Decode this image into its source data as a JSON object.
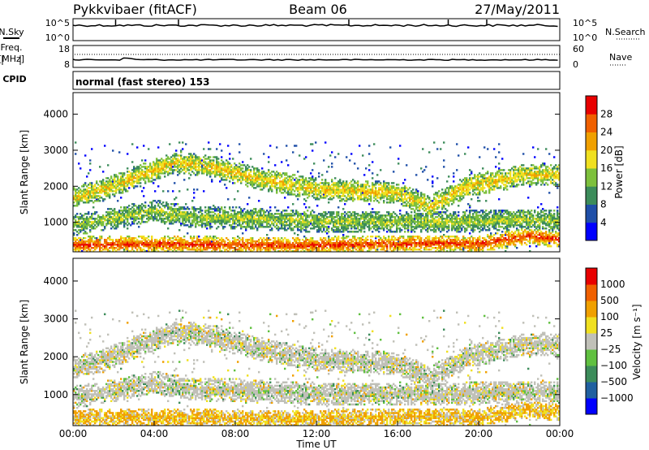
{
  "header": {
    "title": "Pykkvibaer (fitACF)",
    "beam": "Beam 06",
    "date": "27/May/2011"
  },
  "strips": {
    "nsky_label": "N.Sky",
    "nsearch_label": "N.Search",
    "freq_label_line1": "Freq.",
    "freq_label_line2": "[MHz]",
    "nave_label": "Nave",
    "cpid_label": "CPID",
    "cpid_text": "normal (fast stereo) 153",
    "nsky_ticks": [
      "10^5",
      "10^0"
    ],
    "nsearch_ticks": [
      "10^5",
      "10^0"
    ],
    "freq_ticks": [
      "18",
      "8"
    ],
    "nave_ticks": [
      "60",
      "0"
    ]
  },
  "chart_data": [
    {
      "type": "heatmap",
      "name": "power_panel",
      "ylabel": "Slant Range [km]",
      "xlabel": "",
      "x_ticks": [
        "00:00",
        "04:00",
        "08:00",
        "12:00",
        "16:00",
        "20:00",
        "00:00"
      ],
      "x_range_hours": [
        0,
        24
      ],
      "y_ticks": [
        1000,
        2000,
        3000,
        4000
      ],
      "ylim": [
        180,
        4600
      ],
      "colorbar": {
        "label": "Power [dB]",
        "ticks": [
          "4",
          "8",
          "12",
          "16",
          "20",
          "24",
          "28"
        ],
        "colors": [
          "#0000ff",
          "#1f4fa8",
          "#3c8c5a",
          "#7dc03c",
          "#f0e020",
          "#f0a000",
          "#f06000",
          "#e80000"
        ]
      },
      "bands": [
        {
          "name": "upper-scatter",
          "points": [
            [
              0.0,
              1650
            ],
            [
              2.0,
              2000
            ],
            [
              5.0,
              2650
            ],
            [
              7.0,
              2500
            ],
            [
              9.0,
              2200
            ],
            [
              12.0,
              1900
            ],
            [
              14.0,
              1850
            ],
            [
              16.0,
              1800
            ],
            [
              17.5,
              1400
            ],
            [
              19.5,
              2000
            ],
            [
              21.5,
              2200
            ],
            [
              22.0,
              2300
            ]
          ],
          "level": 16
        },
        {
          "name": "lower-scatter",
          "points": [
            [
              0.0,
              900
            ],
            [
              1.5,
              1050
            ],
            [
              3.0,
              1200
            ],
            [
              4.0,
              1300
            ],
            [
              6.0,
              1100
            ],
            [
              8.0,
              1100
            ],
            [
              10.0,
              1050
            ],
            [
              12.0,
              1000
            ],
            [
              14.0,
              1000
            ],
            [
              16.0,
              1000
            ],
            [
              19.0,
              1000
            ],
            [
              22.0,
              1050
            ],
            [
              24.0,
              1050
            ]
          ],
          "level": 12
        },
        {
          "name": "near-range-echo",
          "points": [
            [
              0.0,
              350
            ],
            [
              4.0,
              380
            ],
            [
              8.0,
              350
            ],
            [
              12.0,
              350
            ],
            [
              16.0,
              380
            ],
            [
              17.5,
              400
            ],
            [
              20.0,
              380
            ],
            [
              22.5,
              600
            ],
            [
              24.0,
              500
            ]
          ],
          "level": 24
        }
      ]
    },
    {
      "type": "heatmap",
      "name": "velocity_panel",
      "ylabel": "Slant Range [km]",
      "xlabel": "Time UT",
      "x_ticks": [
        "00:00",
        "04:00",
        "08:00",
        "12:00",
        "16:00",
        "20:00",
        "00:00"
      ],
      "x_range_hours": [
        0,
        24
      ],
      "y_ticks": [
        1000,
        2000,
        3000,
        4000
      ],
      "ylim": [
        180,
        4600
      ],
      "colorbar": {
        "label": "Velocity [m s⁻¹]",
        "ticks": [
          "1000",
          "500",
          "100",
          "25",
          "−25",
          "−100",
          "−500",
          "−1000"
        ],
        "colors": [
          "#0000ff",
          "#2060a0",
          "#3c8c5a",
          "#60c040",
          "#c0c0b8",
          "#f0e020",
          "#f0a000",
          "#f06000",
          "#e80000"
        ]
      }
    }
  ]
}
